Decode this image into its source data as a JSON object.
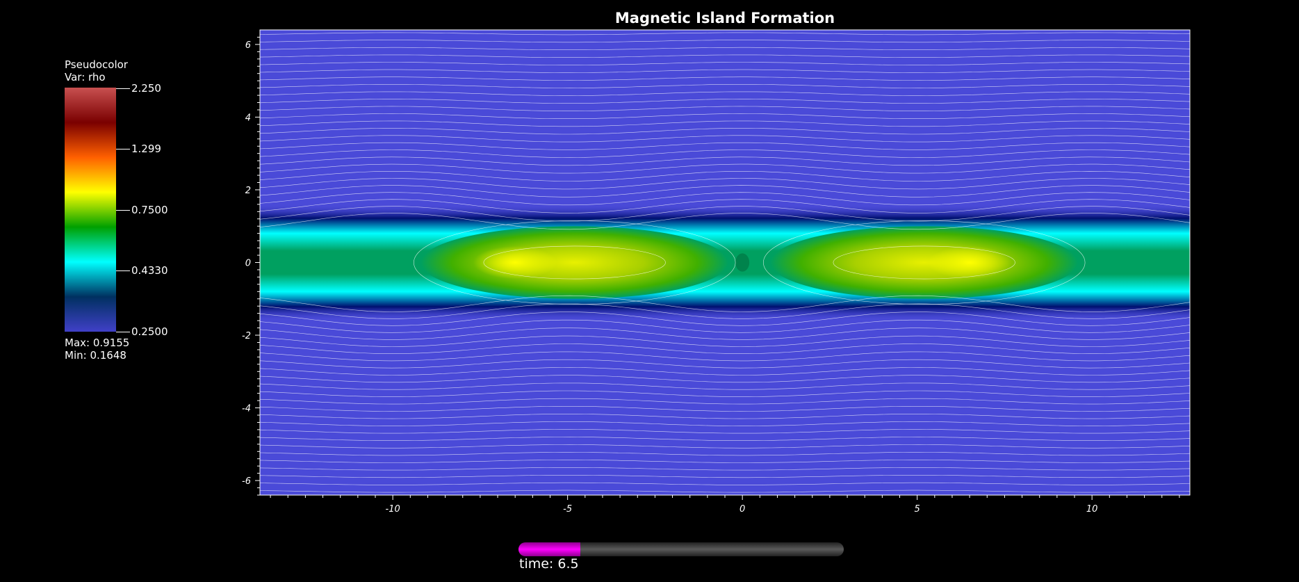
{
  "chart_data": {
    "type": "heatmap",
    "title": "Magnetic Island Formation",
    "xlabel": "",
    "ylabel": "",
    "xlim": [
      -13.8,
      12.8
    ],
    "ylim": [
      -6.4,
      6.4
    ],
    "x_ticks": [
      "-10",
      "-5",
      "0",
      "5",
      "10"
    ],
    "x_tick_values": [
      -10,
      -5,
      0,
      5,
      10
    ],
    "y_ticks": [
      "6",
      "4",
      "2",
      "0",
      "-2",
      "-4",
      "-6"
    ],
    "y_tick_values": [
      6,
      4,
      2,
      0,
      -2,
      -4,
      -6
    ],
    "variable": "rho",
    "legend": {
      "title": "Pseudocolor",
      "var_label": "Var: rho",
      "ticks": [
        "2.250",
        "1.299",
        "0.7500",
        "0.4330",
        "0.2500"
      ],
      "max_label": "Max:  0.9155",
      "min_label": "Min:  0.1648",
      "colors_top_to_bottom": [
        "#c85050",
        "#7a0000",
        "#ff6000",
        "#ffff00",
        "#00a000",
        "#00ffff",
        "#003060",
        "#4040c8"
      ]
    },
    "islands": [
      {
        "x_center": -4.8,
        "peak_x": -6.5,
        "peak_value": 0.9155
      },
      {
        "x_center": 5.2,
        "peak_x": 6.5,
        "peak_value": 0.9155
      }
    ],
    "x_points": [
      0
    ],
    "background_value": 0.25,
    "time_label": "time: 6.5",
    "time_progress": 0.19
  },
  "colors": {
    "background": "#000000",
    "plot_background": "#4a4ad8",
    "contour": "#ffffff",
    "time_fill": "#ff00ff",
    "time_track": "#444444"
  }
}
